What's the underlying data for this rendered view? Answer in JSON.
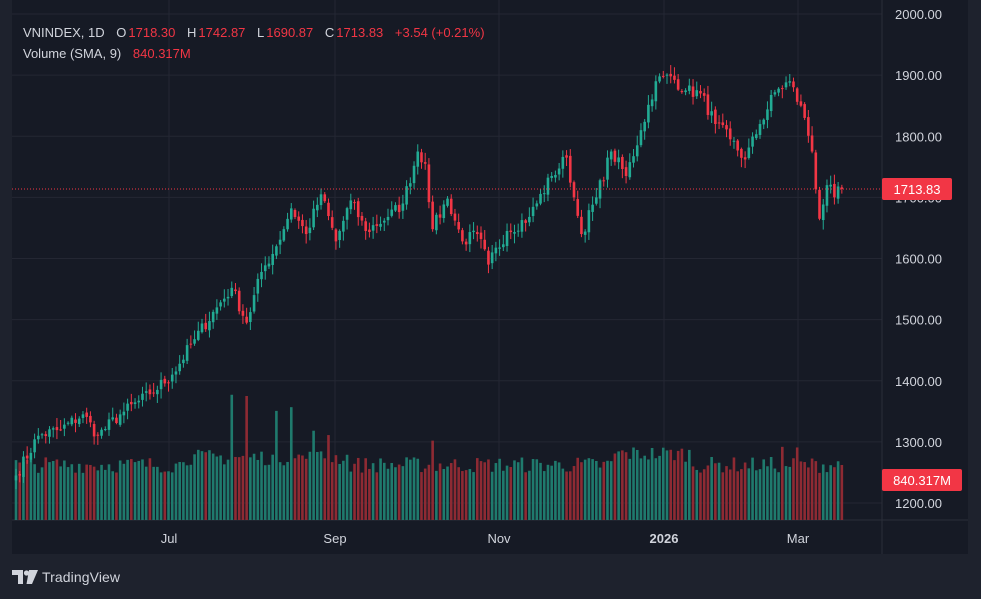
{
  "legend": {
    "symbol": "VNINDEX, 1D",
    "open_label": "O",
    "open": "1718.30",
    "high_label": "H",
    "high": "1742.87",
    "low_label": "L",
    "low": "1690.87",
    "close_label": "C",
    "close": "1713.83",
    "change": "+3.54 (+0.21%)",
    "volume_label": "Volume (SMA, 9)",
    "volume_value": "840.317M"
  },
  "badges": {
    "last_price": "1713.83",
    "last_volume": "840.317M"
  },
  "brand": {
    "name": "TradingView",
    "logo_icon": "tradingview-logo-icon"
  },
  "colors": {
    "up": "#22ab94",
    "down": "#f23645",
    "up_vol": "#1f7a6d",
    "down_vol": "#8e2a33",
    "grid": "#242733",
    "text": "#d1d4dc",
    "background": "#161a25",
    "page": "#1e222d"
  },
  "chart_data": {
    "type": "candlestick",
    "symbol": "VNINDEX",
    "interval": "1D",
    "y_axis": {
      "ticks": [
        1200,
        1300,
        1400,
        1500,
        1600,
        1700,
        1800,
        1900,
        2000
      ],
      "tick_labels": [
        "1200.00",
        "1300.00",
        "1400.00",
        "1500.00",
        "1600.00",
        "1700.00",
        "1800.00",
        "1900.00",
        "2000.00"
      ],
      "range": [
        1175,
        2005
      ]
    },
    "x_axis": {
      "labels": [
        "Jul",
        "Sep",
        "Nov",
        "2026",
        "Mar"
      ],
      "bold_labels": [
        "2026"
      ]
    },
    "grid": true,
    "last_close": 1713.83,
    "volume_sma9": 840.317,
    "anchors": [
      {
        "i": 0,
        "p": 1245
      },
      {
        "i": 6,
        "p": 1310
      },
      {
        "i": 12,
        "p": 1320
      },
      {
        "i": 18,
        "p": 1345
      },
      {
        "i": 22,
        "p": 1310
      },
      {
        "i": 28,
        "p": 1345
      },
      {
        "i": 36,
        "p": 1378
      },
      {
        "i": 42,
        "p": 1410
      },
      {
        "i": 48,
        "p": 1468
      },
      {
        "i": 54,
        "p": 1520
      },
      {
        "i": 58,
        "p": 1552
      },
      {
        "i": 62,
        "p": 1495
      },
      {
        "i": 66,
        "p": 1578
      },
      {
        "i": 70,
        "p": 1620
      },
      {
        "i": 74,
        "p": 1682
      },
      {
        "i": 78,
        "p": 1640
      },
      {
        "i": 82,
        "p": 1705
      },
      {
        "i": 86,
        "p": 1628
      },
      {
        "i": 90,
        "p": 1695
      },
      {
        "i": 94,
        "p": 1645
      },
      {
        "i": 100,
        "p": 1668
      },
      {
        "i": 104,
        "p": 1690
      },
      {
        "i": 108,
        "p": 1775
      },
      {
        "i": 110,
        "p": 1755
      },
      {
        "i": 112,
        "p": 1648
      },
      {
        "i": 116,
        "p": 1698
      },
      {
        "i": 120,
        "p": 1628
      },
      {
        "i": 124,
        "p": 1640
      },
      {
        "i": 127,
        "p": 1590
      },
      {
        "i": 132,
        "p": 1645
      },
      {
        "i": 138,
        "p": 1668
      },
      {
        "i": 144,
        "p": 1735
      },
      {
        "i": 148,
        "p": 1765
      },
      {
        "i": 150,
        "p": 1700
      },
      {
        "i": 152,
        "p": 1640
      },
      {
        "i": 156,
        "p": 1700
      },
      {
        "i": 160,
        "p": 1775
      },
      {
        "i": 164,
        "p": 1735
      },
      {
        "i": 168,
        "p": 1810
      },
      {
        "i": 172,
        "p": 1890
      },
      {
        "i": 176,
        "p": 1898
      },
      {
        "i": 180,
        "p": 1875
      },
      {
        "i": 184,
        "p": 1870
      },
      {
        "i": 188,
        "p": 1820
      },
      {
        "i": 192,
        "p": 1795
      },
      {
        "i": 196,
        "p": 1762
      },
      {
        "i": 200,
        "p": 1820
      },
      {
        "i": 204,
        "p": 1872
      },
      {
        "i": 208,
        "p": 1890
      },
      {
        "i": 212,
        "p": 1830
      },
      {
        "i": 214,
        "p": 1775
      },
      {
        "i": 216,
        "p": 1665
      },
      {
        "i": 218,
        "p": 1720
      },
      {
        "i": 220,
        "p": 1700
      },
      {
        "i": 222,
        "p": 1713.83
      }
    ],
    "bar_count": 223,
    "volume_spikes": [
      {
        "i": 58,
        "v": 1900
      },
      {
        "i": 62,
        "v": 1880
      },
      {
        "i": 70,
        "v": 1640
      },
      {
        "i": 74,
        "v": 1700
      },
      {
        "i": 80,
        "v": 1320
      },
      {
        "i": 84,
        "v": 1250
      },
      {
        "i": 112,
        "v": 1280
      },
      {
        "i": 206,
        "v": 1180
      },
      {
        "i": 210,
        "v": 1170
      }
    ],
    "volume_axis_ref": {
      "base": 0,
      "sma_value": 840.317
    }
  }
}
